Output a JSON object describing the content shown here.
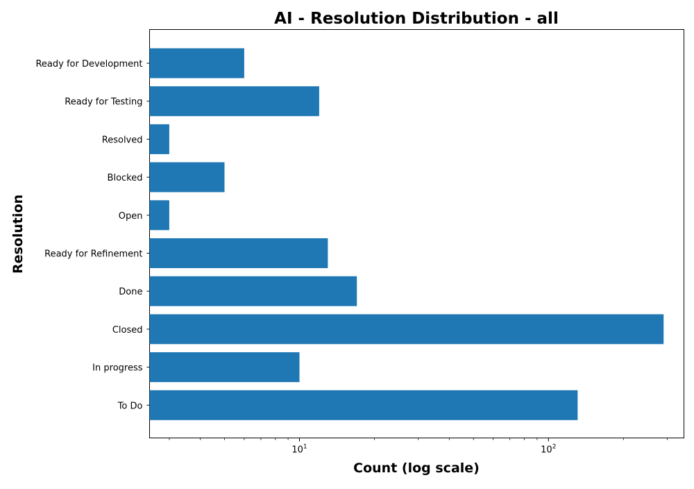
{
  "chart_data": {
    "type": "bar",
    "orientation": "horizontal",
    "title": "AI - Resolution Distribution - all",
    "xlabel": "Count (log scale)",
    "ylabel": "Resolution",
    "x_scale": "log",
    "xlim": [
      2.5,
      350
    ],
    "x_ticks": [
      {
        "value": 10,
        "base": "10",
        "exp": "1"
      },
      {
        "value": 100,
        "base": "10",
        "exp": "2"
      }
    ],
    "categories": [
      "Ready for Development",
      "Ready for Testing",
      "Resolved",
      "Blocked",
      "Open",
      "Ready for Refinement",
      "Done",
      "Closed",
      "In progress",
      "To Do"
    ],
    "values": [
      6,
      12,
      3,
      5,
      3,
      13,
      17,
      290,
      10,
      131
    ],
    "bar_color": "#1f77b4",
    "grid": false,
    "legend": "none"
  }
}
